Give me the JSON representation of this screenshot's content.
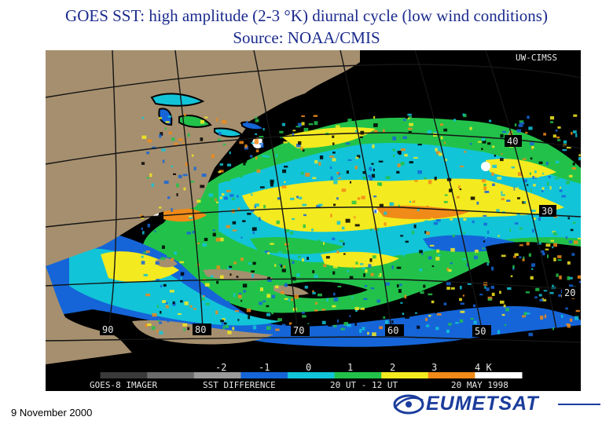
{
  "slide": {
    "title_line1": "GOES SST: high amplitude (2-3 °K) diurnal cycle (low wind conditions)",
    "title_line2": "Source: NOAA/CMIS",
    "footer_date": "9 November 2000"
  },
  "map": {
    "agency_tag": "UW-CIMSS",
    "latitude_labels": [
      "40",
      "30",
      "20"
    ],
    "longitude_labels": [
      "90",
      "80",
      "70",
      "60",
      "50"
    ],
    "colorbar_ticks": [
      "-2",
      "-1",
      "0",
      "1",
      "2",
      "3",
      "4 K"
    ],
    "info_instrument": "GOES-8 IMAGER",
    "info_product": "SST DIFFERENCE",
    "info_time": "20 UT - 12 UT",
    "info_date": "20 MAY 1998",
    "colors": {
      "land": "#a58f6e",
      "no_data": "#000000",
      "ocean_blue": "#1565d8",
      "ocean_cyan": "#12c4d8",
      "ocean_green": "#22c24a",
      "ocean_yellow": "#f4ea20",
      "ocean_orange": "#f08a18",
      "ocean_white": "#ffffff",
      "grid": "#141414"
    },
    "colorbar_colors": [
      "#000000",
      "#3a3a3a",
      "#6a6a6a",
      "#9a9a9a",
      "#1565d8",
      "#12c4d8",
      "#22c24a",
      "#f4ea20",
      "#f08a18",
      "#ffffff"
    ]
  },
  "logo": {
    "text": "EUMETSAT",
    "icon": "eumetsat-swoosh-icon",
    "color": "#1a3c9c"
  }
}
